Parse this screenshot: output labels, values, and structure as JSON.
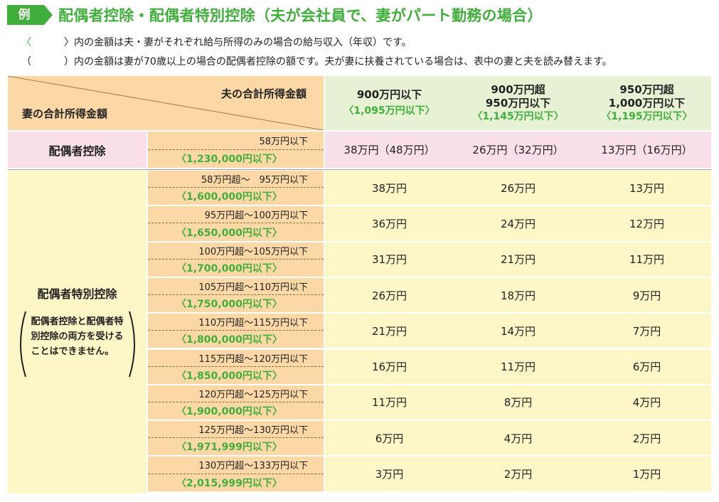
{
  "header": {
    "badge": "例",
    "title": "配偶者控除・配偶者特別控除（夫が会社員で、妻がパート勤務の場合）"
  },
  "notes": [
    {
      "mark": "〈",
      "text": "〉内の金額は夫・妻がそれぞれ給与所得のみの場合の給与収入（年収）です。"
    },
    {
      "mark": "（",
      "text": "）内の金額は妻が70歳以上の場合の配偶者控除の額です。夫が妻に扶養されている場合は、表中の妻と夫を読み替えます。"
    }
  ],
  "table": {
    "corner_top": "夫の合計所得金額",
    "corner_bottom": "妻の合計所得金額",
    "columns": [
      {
        "line1": "900万円以下",
        "line2": "",
        "income": "〈1,095万円以下〉"
      },
      {
        "line1": "900万円超",
        "line2": "950万円以下",
        "income": "〈1,145万円以下〉"
      },
      {
        "line1": "950万円超",
        "line2": "1,000万円以下",
        "income": "〈1,195万円以下〉"
      }
    ],
    "haigusha": {
      "label": "配偶者控除",
      "range": "58万円以下",
      "income": "〈1,230,000円以下〉",
      "values": [
        "38万円（48万円）",
        "26万円（32万円）",
        "13万円（16万円）"
      ]
    },
    "tokubetsu": {
      "label": "配偶者特別控除",
      "note": "配偶者控除と配偶者特別控除の両方を受けることはできません。",
      "rows": [
        {
          "range": "58万円超～　95万円以下",
          "income": "〈1,600,000円以下〉",
          "values": [
            "38万円",
            "26万円",
            "13万円"
          ]
        },
        {
          "range": "95万円超～100万円以下",
          "income": "〈1,650,000円以下〉",
          "values": [
            "36万円",
            "24万円",
            "12万円"
          ]
        },
        {
          "range": "100万円超～105万円以下",
          "income": "〈1,700,000円以下〉",
          "values": [
            "31万円",
            "21万円",
            "11万円"
          ]
        },
        {
          "range": "105万円超～110万円以下",
          "income": "〈1,750,000円以下〉",
          "values": [
            "26万円",
            "18万円",
            "9万円"
          ]
        },
        {
          "range": "110万円超～115万円以下",
          "income": "〈1,800,000円以下〉",
          "values": [
            "21万円",
            "14万円",
            "7万円"
          ]
        },
        {
          "range": "115万円超～120万円以下",
          "income": "〈1,850,000円以下〉",
          "values": [
            "16万円",
            "11万円",
            "6万円"
          ]
        },
        {
          "range": "120万円超～125万円以下",
          "income": "〈1,900,000円以下〉",
          "values": [
            "11万円",
            "8万円",
            "4万円"
          ]
        },
        {
          "range": "125万円超～130万円以下",
          "income": "〈1,971,999円以下〉",
          "values": [
            "6万円",
            "4万円",
            "2万円"
          ]
        },
        {
          "range": "130万円超～133万円以下",
          "income": "〈2,015,999円以下〉",
          "values": [
            "3万円",
            "2万円",
            "1万円"
          ]
        }
      ]
    }
  }
}
